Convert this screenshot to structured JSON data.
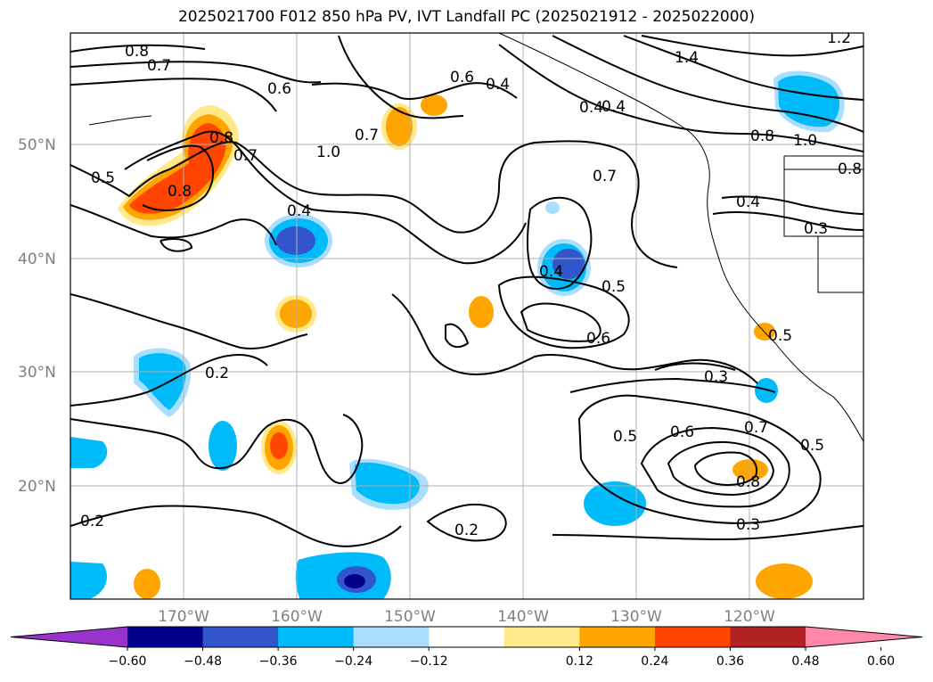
{
  "title": "2025021700 F012 850 hPa PV, IVT Landfall PC (2025021912 - 2025022000)",
  "lat_labels": [
    "50°N",
    "40°N",
    "30°N",
    "20°N"
  ],
  "lon_labels": [
    "170°W",
    "160°W",
    "150°W",
    "140°W",
    "130°W",
    "120°W"
  ],
  "contour_labels": [
    "0.8",
    "0.7",
    "0.6",
    "0.5",
    "0.8",
    "0.7",
    "0.8",
    "1.0",
    "0.7",
    "0.4",
    "0.6",
    "0.4",
    "0.4",
    "0.4",
    "1.2",
    "1.4",
    "1.0",
    "0.8",
    "0.8",
    "0.7",
    "0.4",
    "0.3",
    "0.5",
    "0.4",
    "0.2",
    "0.6",
    "0.3",
    "0.5",
    "0.5",
    "0.6",
    "0.7",
    "0.8",
    "0.5",
    "0.3",
    "0.2",
    "0.2"
  ],
  "colorbar": {
    "ticks": [
      "−0.60",
      "−0.48",
      "−0.36",
      "−0.24",
      "−0.12",
      "0.12",
      "0.24",
      "0.36",
      "0.48",
      "0.60"
    ],
    "colors": [
      "#9933cc",
      "#00008b",
      "#3355cc",
      "#00bbf9",
      "#aadeff",
      "#ffffff",
      "#ffe98a",
      "#ffa500",
      "#ff4500",
      "#b22222",
      "#ff88aa"
    ]
  }
}
